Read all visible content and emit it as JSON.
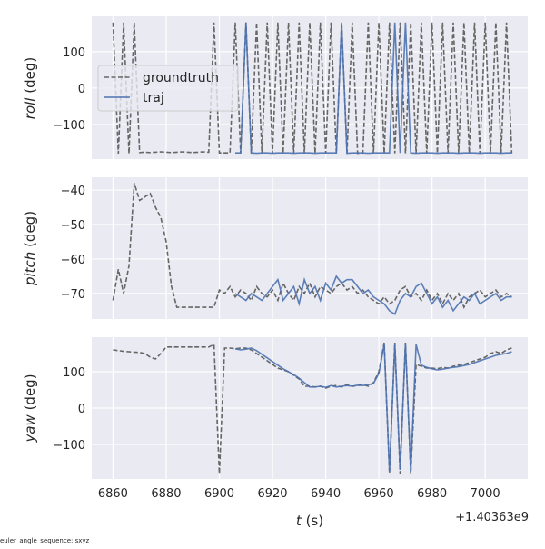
{
  "figure": {
    "xlabel_var": "t",
    "xlabel_unit": " (s)",
    "x_offset_label": "+1.40363e9",
    "footer": "euler_angle_sequence: sxyz",
    "legend": {
      "groundtruth": "groundtruth",
      "traj": "traj",
      "placement": "upper-left of top panel"
    },
    "colors": {
      "groundtruth": "#666666",
      "traj": "#4c72b0",
      "axes_bg": "#eaeaf2",
      "grid": "#ffffff"
    }
  },
  "chart_data": [
    {
      "type": "line",
      "ylabel_var": "roll",
      "ylabel_unit": " (deg)",
      "xlim": [
        6852,
        7016
      ],
      "ylim": [
        -195,
        197
      ],
      "xticks": [
        6860,
        6880,
        6900,
        6920,
        6940,
        6960,
        6980,
        7000
      ],
      "yticks": [
        -100,
        0,
        100
      ],
      "grid": true,
      "series": [
        {
          "name": "groundtruth",
          "style": "dashed",
          "x": [
            6860,
            6862,
            6864,
            6866,
            6868,
            6870,
            6872,
            6874,
            6876,
            6878,
            6880,
            6882,
            6884,
            6886,
            6888,
            6890,
            6892,
            6894,
            6896,
            6898,
            6900,
            6902,
            6904,
            6906,
            6908,
            6910,
            6912,
            6914,
            6916,
            6918,
            6920,
            6922,
            6924,
            6926,
            6928,
            6930,
            6932,
            6934,
            6936,
            6938,
            6940,
            6942,
            6944,
            6946,
            6948,
            6950,
            6952,
            6954,
            6956,
            6958,
            6960,
            6962,
            6964,
            6966,
            6968,
            6970,
            6972,
            6974,
            6976,
            6978,
            6980,
            6982,
            6984,
            6986,
            6988,
            6990,
            6992,
            6994,
            6996,
            6998,
            7000,
            7002,
            7004,
            7006,
            7008,
            7010
          ],
          "y": [
            180,
            -180,
            180,
            -180,
            180,
            -177,
            -176,
            -177,
            -176,
            -175,
            -176,
            -177,
            -176,
            -175,
            -176,
            -177,
            -176,
            -175,
            -176,
            180,
            -178,
            -178,
            -178,
            180,
            -179,
            180,
            -179,
            180,
            -179,
            180,
            -179,
            180,
            -179,
            180,
            -179,
            180,
            -179,
            180,
            -179,
            180,
            -179,
            180,
            -179,
            180,
            -179,
            180,
            -179,
            -178,
            180,
            -179,
            180,
            -179,
            180,
            -179,
            180,
            -179,
            180,
            -179,
            180,
            -179,
            180,
            -179,
            180,
            -179,
            180,
            -179,
            180,
            -179,
            180,
            -179,
            180,
            -179,
            180,
            -179,
            180,
            -179
          ]
        },
        {
          "name": "traj",
          "style": "solid",
          "x": [
            6906,
            6908,
            6910,
            6912,
            6914,
            6916,
            6918,
            6920,
            6922,
            6924,
            6926,
            6928,
            6930,
            6932,
            6934,
            6936,
            6938,
            6940,
            6942,
            6944,
            6946,
            6948,
            6950,
            6952,
            6954,
            6956,
            6958,
            6960,
            6962,
            6964,
            6966,
            6968,
            6970,
            6972,
            6974,
            6976,
            6978,
            6980,
            6982,
            6984,
            6986,
            6988,
            6990,
            6992,
            6994,
            6996,
            6998,
            7000,
            7002,
            7004,
            7006,
            7008,
            7010
          ],
          "y": [
            -178,
            -178,
            180,
            -178,
            -179,
            -178,
            -178,
            -179,
            -178,
            -178,
            -178,
            -179,
            -178,
            -178,
            -178,
            -179,
            -178,
            -178,
            -178,
            -178,
            180,
            -179,
            -178,
            -178,
            -178,
            -179,
            -178,
            -178,
            -178,
            -178,
            180,
            -178,
            180,
            -178,
            -179,
            -178,
            -178,
            -178,
            -179,
            -178,
            -178,
            -178,
            -179,
            -178,
            -178,
            -178,
            -179,
            -178,
            -178,
            -178,
            -179,
            -178,
            -178
          ]
        }
      ]
    },
    {
      "type": "line",
      "ylabel_var": "pitch",
      "ylabel_unit": " (deg)",
      "xlim": [
        6852,
        7016
      ],
      "ylim": [
        -77.4,
        -36.3
      ],
      "xticks": [
        6860,
        6880,
        6900,
        6920,
        6940,
        6960,
        6980,
        7000
      ],
      "yticks": [
        -70,
        -60,
        -50,
        -40
      ],
      "grid": true,
      "series": [
        {
          "name": "groundtruth",
          "style": "dashed",
          "x": [
            6860,
            6862,
            6864,
            6866,
            6868,
            6870,
            6872,
            6874,
            6876,
            6878,
            6880,
            6882,
            6884,
            6886,
            6888,
            6890,
            6892,
            6894,
            6896,
            6898,
            6900,
            6902,
            6904,
            6906,
            6908,
            6910,
            6912,
            6914,
            6916,
            6918,
            6920,
            6922,
            6924,
            6926,
            6928,
            6930,
            6932,
            6934,
            6936,
            6938,
            6940,
            6942,
            6944,
            6946,
            6948,
            6950,
            6952,
            6954,
            6956,
            6958,
            6960,
            6962,
            6964,
            6966,
            6968,
            6970,
            6972,
            6974,
            6976,
            6978,
            6980,
            6982,
            6984,
            6986,
            6988,
            6990,
            6992,
            6994,
            6996,
            6998,
            7000,
            7002,
            7004,
            7006,
            7008,
            7010
          ],
          "y": [
            -72,
            -63,
            -70,
            -62,
            -38,
            -43,
            -42,
            -41,
            -45,
            -48,
            -55,
            -68,
            -74,
            -74,
            -74,
            -74,
            -74,
            -74,
            -74,
            -74,
            -69,
            -70,
            -68,
            -71,
            -69,
            -70,
            -72,
            -68,
            -70,
            -71,
            -69,
            -72,
            -67,
            -70,
            -72,
            -68,
            -70,
            -67,
            -71,
            -68,
            -69,
            -70,
            -68,
            -67,
            -69,
            -68,
            -70,
            -69,
            -71,
            -72,
            -73,
            -71,
            -73,
            -72,
            -69,
            -68,
            -71,
            -70,
            -72,
            -69,
            -72,
            -70,
            -73,
            -70,
            -72,
            -70,
            -74,
            -71,
            -70,
            -69,
            -71,
            -70,
            -69,
            -71,
            -70,
            -71
          ]
        },
        {
          "name": "traj",
          "style": "solid",
          "x": [
            6906,
            6908,
            6910,
            6912,
            6914,
            6916,
            6918,
            6920,
            6922,
            6924,
            6926,
            6928,
            6930,
            6932,
            6934,
            6936,
            6938,
            6940,
            6942,
            6944,
            6946,
            6948,
            6950,
            6952,
            6954,
            6956,
            6958,
            6960,
            6962,
            6964,
            6966,
            6968,
            6970,
            6972,
            6974,
            6976,
            6978,
            6980,
            6982,
            6984,
            6986,
            6988,
            6990,
            6992,
            6994,
            6996,
            6998,
            7000,
            7002,
            7004,
            7006,
            7008,
            7010
          ],
          "y": [
            -70,
            -71,
            -72,
            -70,
            -71,
            -72,
            -70,
            -68,
            -66,
            -72,
            -70,
            -68,
            -73,
            -66,
            -70,
            -68,
            -72,
            -67,
            -69,
            -65,
            -67,
            -66,
            -66,
            -68,
            -70,
            -69,
            -71,
            -72,
            -73,
            -75,
            -76,
            -72,
            -70,
            -71,
            -68,
            -67,
            -70,
            -73,
            -71,
            -74,
            -72,
            -75,
            -73,
            -71,
            -72,
            -70,
            -73,
            -72,
            -71,
            -70,
            -72,
            -71,
            -71
          ]
        }
      ]
    },
    {
      "type": "line",
      "ylabel_var": "yaw",
      "ylabel_unit": " (deg)",
      "xlim": [
        6852,
        7016
      ],
      "ylim": [
        -195,
        195
      ],
      "xticks": [
        6860,
        6880,
        6900,
        6920,
        6940,
        6960,
        6980,
        7000
      ],
      "yticks": [
        -100,
        0,
        100
      ],
      "grid": true,
      "series": [
        {
          "name": "groundtruth",
          "style": "dashed",
          "x": [
            6860,
            6862,
            6864,
            6866,
            6868,
            6870,
            6872,
            6874,
            6876,
            6878,
            6880,
            6882,
            6884,
            6886,
            6888,
            6890,
            6892,
            6894,
            6896,
            6898,
            6900,
            6902,
            6904,
            6906,
            6908,
            6910,
            6912,
            6914,
            6916,
            6918,
            6920,
            6922,
            6924,
            6926,
            6928,
            6930,
            6932,
            6934,
            6936,
            6938,
            6940,
            6942,
            6944,
            6946,
            6948,
            6950,
            6952,
            6954,
            6956,
            6958,
            6960,
            6962,
            6964,
            6966,
            6968,
            6970,
            6972,
            6974,
            6976,
            6978,
            6980,
            6982,
            6984,
            6986,
            6988,
            6990,
            6992,
            6994,
            6996,
            6998,
            7000,
            7002,
            7004,
            7006,
            7008,
            7010
          ],
          "y": [
            160,
            158,
            156,
            155,
            154,
            153,
            150,
            140,
            135,
            150,
            168,
            168,
            168,
            168,
            168,
            168,
            168,
            168,
            168,
            175,
            -180,
            165,
            165,
            163,
            165,
            165,
            160,
            150,
            140,
            130,
            120,
            110,
            105,
            100,
            90,
            80,
            60,
            60,
            58,
            60,
            55,
            60,
            62,
            58,
            65,
            60,
            62,
            65,
            60,
            70,
            100,
            180,
            -180,
            180,
            -180,
            180,
            -180,
            120,
            115,
            110,
            110,
            108,
            112,
            110,
            115,
            118,
            120,
            125,
            130,
            135,
            140,
            150,
            155,
            150,
            160,
            165
          ]
        },
        {
          "name": "traj",
          "style": "solid",
          "x": [
            6906,
            6908,
            6910,
            6912,
            6914,
            6916,
            6918,
            6920,
            6922,
            6924,
            6926,
            6928,
            6930,
            6932,
            6934,
            6936,
            6938,
            6940,
            6942,
            6944,
            6946,
            6948,
            6950,
            6952,
            6954,
            6956,
            6958,
            6960,
            6962,
            6964,
            6966,
            6968,
            6970,
            6972,
            6974,
            6976,
            6978,
            6980,
            6982,
            6984,
            6986,
            6988,
            6990,
            6992,
            6994,
            6996,
            6998,
            7000,
            7002,
            7004,
            7006,
            7008,
            7010
          ],
          "y": [
            163,
            160,
            162,
            165,
            158,
            148,
            138,
            128,
            118,
            108,
            100,
            92,
            82,
            70,
            58,
            58,
            60,
            57,
            62,
            58,
            60,
            62,
            60,
            63,
            62,
            64,
            68,
            95,
            175,
            -175,
            175,
            -170,
            178,
            -175,
            175,
            118,
            112,
            108,
            105,
            107,
            110,
            112,
            114,
            117,
            120,
            125,
            130,
            135,
            140,
            145,
            148,
            150,
            155
          ]
        }
      ]
    }
  ]
}
